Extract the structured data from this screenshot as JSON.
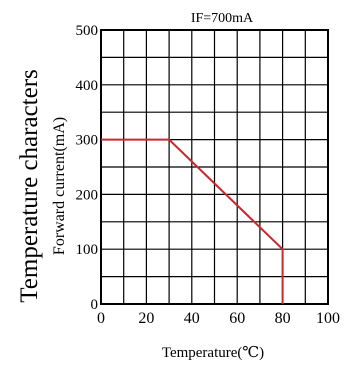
{
  "chart_data": {
    "type": "line",
    "title": "IF=700mA",
    "side_title": "Temperature characters",
    "xlabel": "Temperature(℃)",
    "ylabel": "Forward current(mA)",
    "xlim": [
      0,
      100
    ],
    "ylim": [
      0,
      500
    ],
    "x_ticks": [
      0,
      20,
      40,
      60,
      80,
      100
    ],
    "y_ticks": [
      0,
      100,
      200,
      300,
      400,
      500
    ],
    "grid": true,
    "colors": {
      "series": "#c8292f",
      "grid": "#000000",
      "text": "#000000"
    },
    "series": [
      {
        "values": [
          {
            "x": 0,
            "y": 300
          },
          {
            "x": 30,
            "y": 300
          },
          {
            "x": 80,
            "y": 100
          },
          {
            "x": 80,
            "y": 0
          }
        ]
      }
    ]
  }
}
